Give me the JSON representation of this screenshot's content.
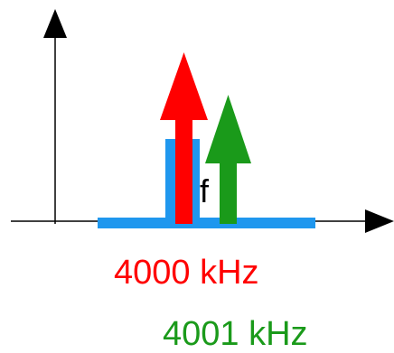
{
  "diagram": {
    "axis_label": "f",
    "carriers": [
      {
        "label": "4000 kHz",
        "color": "#ff0000"
      },
      {
        "label": "4001 kHz",
        "color": "#1a9a1a"
      }
    ],
    "spectrum_color": "#1f97ee",
    "axis_color": "#000000"
  }
}
